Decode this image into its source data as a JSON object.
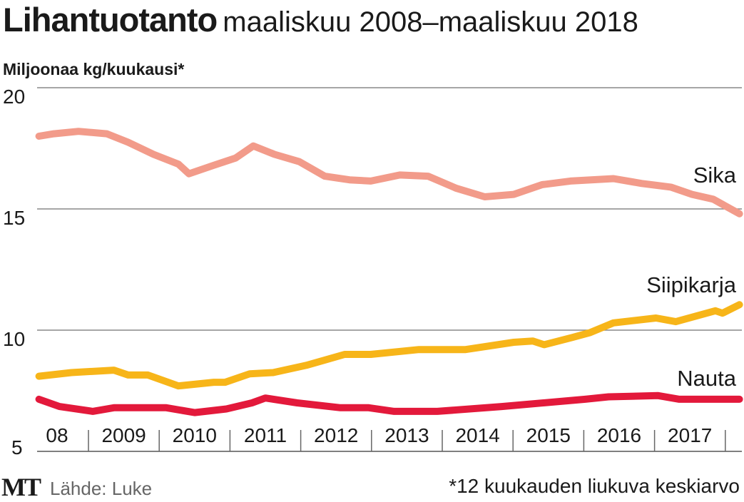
{
  "header": {
    "title": "Lihantuotanto",
    "subtitle": "maaliskuu 2008–maaliskuu 2018"
  },
  "footer": {
    "logo": "MT",
    "source": "Lähde: Luke",
    "footnote": "*12 kuukauden liukuva keskiarvo"
  },
  "chart_data": {
    "type": "line",
    "title": "Lihantuotanto maaliskuu 2008–maaliskuu 2018",
    "ylabel": "Miljoonaa kg/kuukausi*",
    "xlabel": "",
    "ylim": [
      5,
      20
    ],
    "xlim": [
      2008.3,
      2018.2
    ],
    "yticks": [
      "5",
      "10",
      "15",
      "20"
    ],
    "ytick_values": [
      5,
      10,
      15,
      20
    ],
    "xtick_labels": [
      "08",
      "2009",
      "2010",
      "2011",
      "2012",
      "2013",
      "2014",
      "2015",
      "2016",
      "2017"
    ],
    "xtick_centers": [
      2008.65,
      2009.5,
      2010.5,
      2011.5,
      2012.5,
      2013.5,
      2014.5,
      2015.5,
      2016.5,
      2017.5
    ],
    "xtick_separators": [
      2009,
      2010,
      2011,
      2012,
      2013,
      2014,
      2015,
      2016,
      2017,
      2018
    ],
    "grid": true,
    "legend": "inline-right",
    "series": [
      {
        "name": "Sika",
        "color": "#f29b8a",
        "points": [
          [
            2008.3,
            18.0
          ],
          [
            2008.51,
            18.1
          ],
          [
            2008.86,
            18.2
          ],
          [
            2009.26,
            18.1
          ],
          [
            2009.56,
            17.75
          ],
          [
            2009.92,
            17.25
          ],
          [
            2010.27,
            16.85
          ],
          [
            2010.42,
            16.45
          ],
          [
            2010.77,
            16.8
          ],
          [
            2011.08,
            17.1
          ],
          [
            2011.33,
            17.6
          ],
          [
            2011.63,
            17.25
          ],
          [
            2011.98,
            16.95
          ],
          [
            2012.34,
            16.35
          ],
          [
            2012.69,
            16.2
          ],
          [
            2012.99,
            16.15
          ],
          [
            2013.4,
            16.4
          ],
          [
            2013.8,
            16.35
          ],
          [
            2014.2,
            15.85
          ],
          [
            2014.6,
            15.5
          ],
          [
            2015.01,
            15.6
          ],
          [
            2015.41,
            16.0
          ],
          [
            2015.81,
            16.15
          ],
          [
            2016.42,
            16.25
          ],
          [
            2016.82,
            16.05
          ],
          [
            2017.23,
            15.9
          ],
          [
            2017.53,
            15.6
          ],
          [
            2017.83,
            15.4
          ],
          [
            2018.2,
            14.8
          ]
        ]
      },
      {
        "name": "Siipikarja",
        "color": "#f7b519",
        "points": [
          [
            2008.3,
            8.1
          ],
          [
            2008.76,
            8.25
          ],
          [
            2009.36,
            8.35
          ],
          [
            2009.56,
            8.15
          ],
          [
            2009.84,
            8.15
          ],
          [
            2010.27,
            7.7
          ],
          [
            2010.77,
            7.85
          ],
          [
            2010.93,
            7.85
          ],
          [
            2011.28,
            8.2
          ],
          [
            2011.61,
            8.25
          ],
          [
            2012.08,
            8.55
          ],
          [
            2012.62,
            9.0
          ],
          [
            2012.99,
            9.0
          ],
          [
            2013.67,
            9.2
          ],
          [
            2014.33,
            9.2
          ],
          [
            2015.01,
            9.5
          ],
          [
            2015.28,
            9.55
          ],
          [
            2015.44,
            9.4
          ],
          [
            2015.84,
            9.7
          ],
          [
            2016.09,
            9.9
          ],
          [
            2016.42,
            10.3
          ],
          [
            2017.02,
            10.5
          ],
          [
            2017.3,
            10.35
          ],
          [
            2017.86,
            10.8
          ],
          [
            2017.96,
            10.7
          ],
          [
            2018.2,
            11.05
          ]
        ]
      },
      {
        "name": "Nauta",
        "color": "#e3193b",
        "points": [
          [
            2008.3,
            7.15
          ],
          [
            2008.59,
            6.85
          ],
          [
            2009.06,
            6.65
          ],
          [
            2009.36,
            6.8
          ],
          [
            2010.1,
            6.8
          ],
          [
            2010.5,
            6.6
          ],
          [
            2010.95,
            6.75
          ],
          [
            2011.31,
            7.0
          ],
          [
            2011.5,
            7.2
          ],
          [
            2011.95,
            7.0
          ],
          [
            2012.56,
            6.8
          ],
          [
            2012.96,
            6.8
          ],
          [
            2013.32,
            6.65
          ],
          [
            2013.93,
            6.65
          ],
          [
            2014.84,
            6.85
          ],
          [
            2016.02,
            7.15
          ],
          [
            2016.35,
            7.25
          ],
          [
            2017.05,
            7.3
          ],
          [
            2017.35,
            7.15
          ],
          [
            2018.2,
            7.15
          ]
        ]
      }
    ]
  }
}
